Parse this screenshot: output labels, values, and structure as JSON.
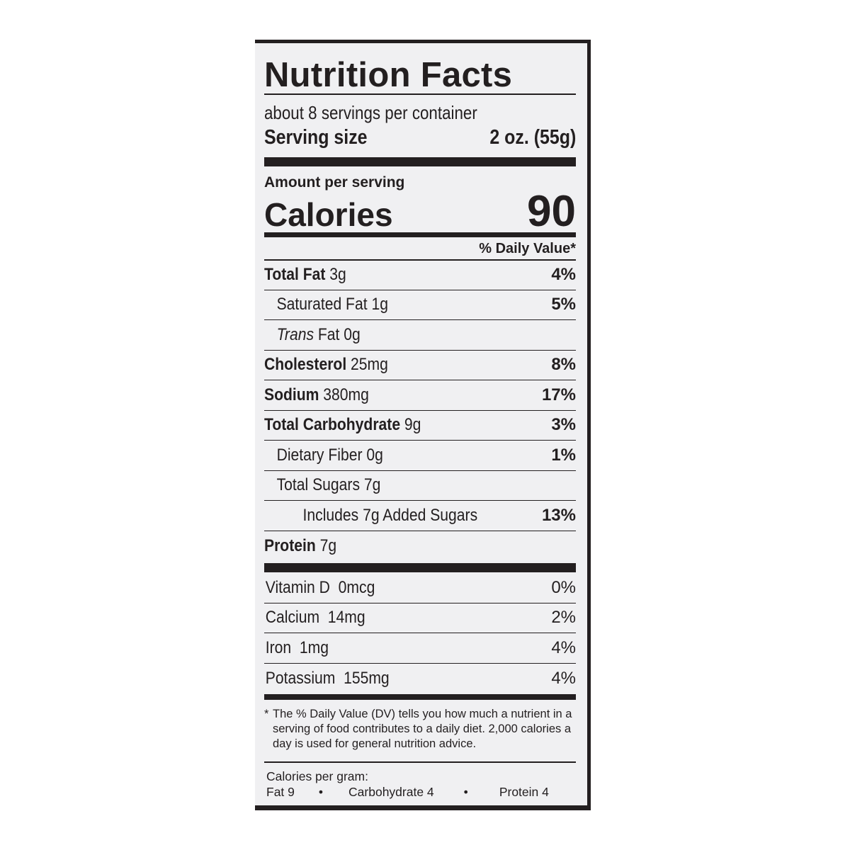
{
  "title": "Nutrition Facts",
  "servings_per_container": "about 8 servings per container",
  "serving_size": {
    "label": "Serving size",
    "value": "2 oz. (55g)"
  },
  "amount_per_serving": "Amount per serving",
  "calories": {
    "label": "Calories",
    "value": "90"
  },
  "daily_value_header": "% Daily Value*",
  "nutrients": [
    {
      "name": "Total Fat",
      "amount": "3g",
      "dv": "4%",
      "bold": true,
      "indent": 0
    },
    {
      "name": "Saturated Fat",
      "amount": "1g",
      "dv": "5%",
      "bold": false,
      "indent": 1
    },
    {
      "name": "Trans",
      "name_suffix": "Fat",
      "amount": "0g",
      "dv": "",
      "bold": false,
      "indent": 1,
      "italic_prefix": true
    },
    {
      "name": "Cholesterol",
      "amount": "25mg",
      "dv": "8%",
      "bold": true,
      "indent": 0
    },
    {
      "name": "Sodium",
      "amount": "380mg",
      "dv": "17%",
      "bold": true,
      "indent": 0
    },
    {
      "name": "Total Carbohydrate",
      "amount": "9g",
      "dv": "3%",
      "bold": true,
      "indent": 0
    },
    {
      "name": "Dietary Fiber",
      "amount": "0g",
      "dv": "1%",
      "bold": false,
      "indent": 1
    },
    {
      "name": "Total Sugars",
      "amount": "7g",
      "dv": "",
      "bold": false,
      "indent": 1
    },
    {
      "name": "Includes 7g Added Sugars",
      "amount": "",
      "dv": "13%",
      "bold": false,
      "indent": 2
    },
    {
      "name": "Protein",
      "amount": "7g",
      "dv": "",
      "bold": true,
      "indent": 0
    }
  ],
  "vitamins": [
    {
      "name": "Vitamin D",
      "amount": "0mcg",
      "dv": "0%"
    },
    {
      "name": "Calcium",
      "amount": "14mg",
      "dv": "2%"
    },
    {
      "name": "Iron",
      "amount": "1mg",
      "dv": "4%"
    },
    {
      "name": "Potassium",
      "amount": "155mg",
      "dv": "4%"
    }
  ],
  "footnote": {
    "asterisk": "*",
    "text": "The % Daily Value (DV) tells you how much a nutrient in a serving of food contributes to a daily diet. 2,000 calories a day is used for general nutrition advice."
  },
  "calories_per_gram": {
    "label": "Calories per gram:",
    "fat": "Fat 9",
    "carbohydrate": "Carbohydrate 4",
    "protein": "Protein 4",
    "separator": "•"
  }
}
